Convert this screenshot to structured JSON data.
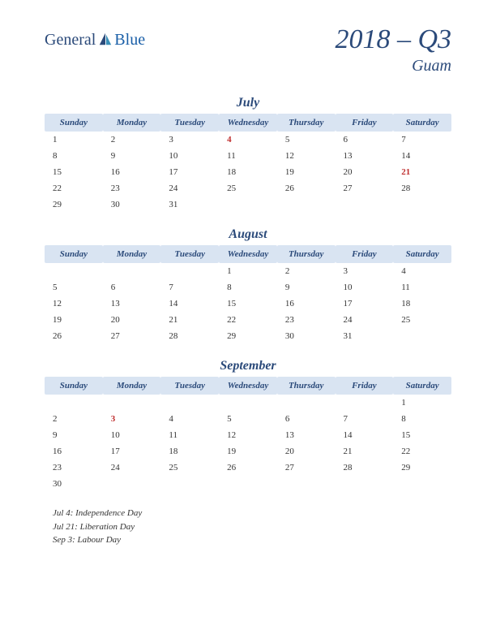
{
  "logo": {
    "text1": "General",
    "text2": "Blue"
  },
  "title": "2018 – Q3",
  "region": "Guam",
  "day_headers": [
    "Sunday",
    "Monday",
    "Tuesday",
    "Wednesday",
    "Thursday",
    "Friday",
    "Saturday"
  ],
  "months": [
    {
      "name": "July",
      "weeks": [
        [
          {
            "d": "1"
          },
          {
            "d": "2"
          },
          {
            "d": "3"
          },
          {
            "d": "4",
            "h": true
          },
          {
            "d": "5"
          },
          {
            "d": "6"
          },
          {
            "d": "7"
          }
        ],
        [
          {
            "d": "8"
          },
          {
            "d": "9"
          },
          {
            "d": "10"
          },
          {
            "d": "11"
          },
          {
            "d": "12"
          },
          {
            "d": "13"
          },
          {
            "d": "14"
          }
        ],
        [
          {
            "d": "15"
          },
          {
            "d": "16"
          },
          {
            "d": "17"
          },
          {
            "d": "18"
          },
          {
            "d": "19"
          },
          {
            "d": "20"
          },
          {
            "d": "21",
            "h": true
          }
        ],
        [
          {
            "d": "22"
          },
          {
            "d": "23"
          },
          {
            "d": "24"
          },
          {
            "d": "25"
          },
          {
            "d": "26"
          },
          {
            "d": "27"
          },
          {
            "d": "28"
          }
        ],
        [
          {
            "d": "29"
          },
          {
            "d": "30"
          },
          {
            "d": "31"
          },
          {
            "d": ""
          },
          {
            "d": ""
          },
          {
            "d": ""
          },
          {
            "d": ""
          }
        ]
      ]
    },
    {
      "name": "August",
      "weeks": [
        [
          {
            "d": ""
          },
          {
            "d": ""
          },
          {
            "d": ""
          },
          {
            "d": "1"
          },
          {
            "d": "2"
          },
          {
            "d": "3"
          },
          {
            "d": "4"
          }
        ],
        [
          {
            "d": "5"
          },
          {
            "d": "6"
          },
          {
            "d": "7"
          },
          {
            "d": "8"
          },
          {
            "d": "9"
          },
          {
            "d": "10"
          },
          {
            "d": "11"
          }
        ],
        [
          {
            "d": "12"
          },
          {
            "d": "13"
          },
          {
            "d": "14"
          },
          {
            "d": "15"
          },
          {
            "d": "16"
          },
          {
            "d": "17"
          },
          {
            "d": "18"
          }
        ],
        [
          {
            "d": "19"
          },
          {
            "d": "20"
          },
          {
            "d": "21"
          },
          {
            "d": "22"
          },
          {
            "d": "23"
          },
          {
            "d": "24"
          },
          {
            "d": "25"
          }
        ],
        [
          {
            "d": "26"
          },
          {
            "d": "27"
          },
          {
            "d": "28"
          },
          {
            "d": "29"
          },
          {
            "d": "30"
          },
          {
            "d": "31"
          },
          {
            "d": ""
          }
        ]
      ]
    },
    {
      "name": "September",
      "weeks": [
        [
          {
            "d": ""
          },
          {
            "d": ""
          },
          {
            "d": ""
          },
          {
            "d": ""
          },
          {
            "d": ""
          },
          {
            "d": ""
          },
          {
            "d": "1"
          }
        ],
        [
          {
            "d": "2"
          },
          {
            "d": "3",
            "h": true
          },
          {
            "d": "4"
          },
          {
            "d": "5"
          },
          {
            "d": "6"
          },
          {
            "d": "7"
          },
          {
            "d": "8"
          }
        ],
        [
          {
            "d": "9"
          },
          {
            "d": "10"
          },
          {
            "d": "11"
          },
          {
            "d": "12"
          },
          {
            "d": "13"
          },
          {
            "d": "14"
          },
          {
            "d": "15"
          }
        ],
        [
          {
            "d": "16"
          },
          {
            "d": "17"
          },
          {
            "d": "18"
          },
          {
            "d": "19"
          },
          {
            "d": "20"
          },
          {
            "d": "21"
          },
          {
            "d": "22"
          }
        ],
        [
          {
            "d": "23"
          },
          {
            "d": "24"
          },
          {
            "d": "25"
          },
          {
            "d": "26"
          },
          {
            "d": "27"
          },
          {
            "d": "28"
          },
          {
            "d": "29"
          }
        ],
        [
          {
            "d": "30"
          },
          {
            "d": ""
          },
          {
            "d": ""
          },
          {
            "d": ""
          },
          {
            "d": ""
          },
          {
            "d": ""
          },
          {
            "d": ""
          }
        ]
      ]
    }
  ],
  "holidays": [
    "Jul 4: Independence Day",
    "Jul 21: Liberation Day",
    "Sep 3: Labour Day"
  ],
  "colors": {
    "header_bg": "#d9e4f2",
    "accent": "#2b4a7a",
    "holiday": "#c03030",
    "text": "#333333",
    "background": "#ffffff"
  }
}
